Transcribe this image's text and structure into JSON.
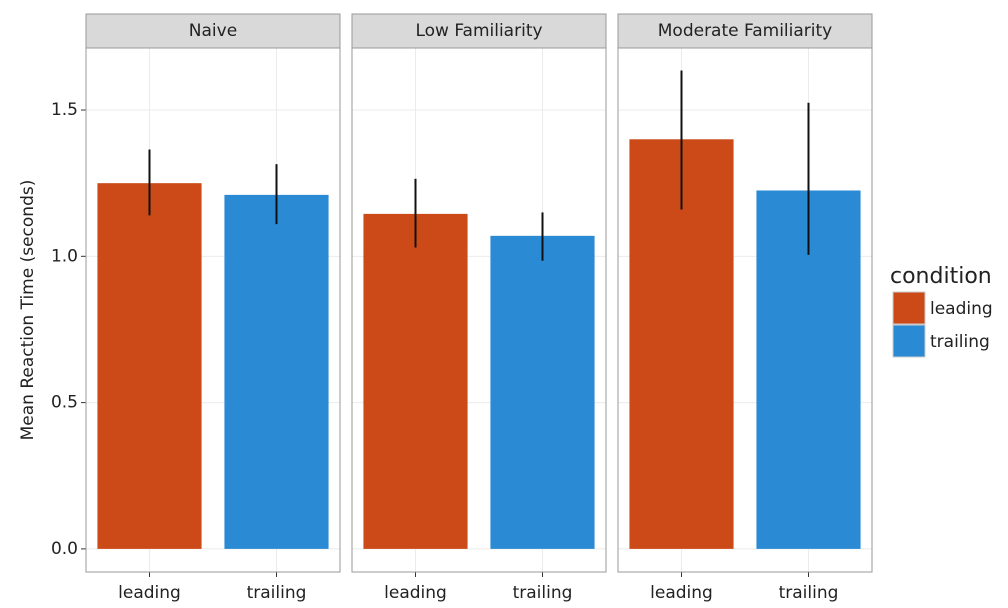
{
  "chart_data": {
    "type": "bar",
    "ylabel": "Mean Reaction Time (seconds)",
    "legend_title": "condition",
    "categories": [
      "leading",
      "trailing"
    ],
    "colors": [
      "#cc4a18",
      "#2a8ad4"
    ],
    "ylim": [
      -0.079,
      1.712
    ],
    "yticks": [
      {
        "value": 0,
        "label": "0.0"
      },
      0.5,
      {
        "value": 1,
        "label": "1.0"
      },
      1.5
    ],
    "grid": true,
    "legend": "right",
    "facets": [
      {
        "title": "Naive",
        "values": [
          1.25,
          1.21
        ],
        "ci": [
          [
            1.14,
            1.365
          ],
          [
            1.11,
            1.315
          ]
        ]
      },
      {
        "title": "Low Familiarity",
        "values": [
          1.145,
          1.07
        ],
        "ci": [
          [
            1.03,
            1.265
          ],
          [
            0.985,
            1.15
          ]
        ]
      },
      {
        "title": "Moderate Familiarity",
        "values": [
          1.4,
          1.225
        ],
        "ci": [
          [
            1.16,
            1.635
          ],
          [
            1.005,
            1.525
          ]
        ]
      }
    ]
  }
}
